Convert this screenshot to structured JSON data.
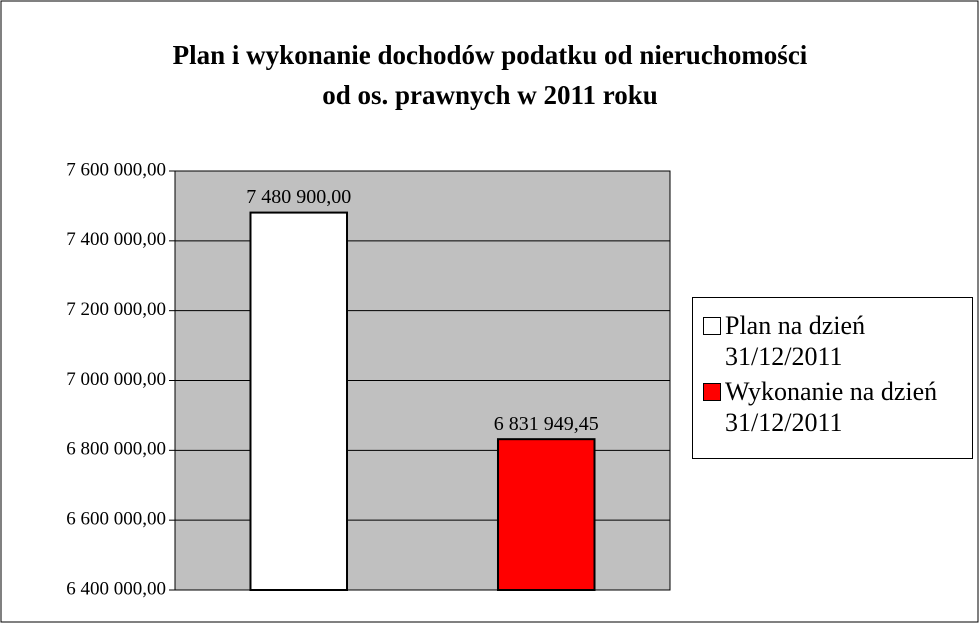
{
  "chart_data": {
    "type": "bar",
    "title": [
      "Plan i wykonanie dochodów podatku od nieruchomości",
      "od os. prawnych w 2011 roku"
    ],
    "series": [
      {
        "name": "Plan na dzień 31/12/2011",
        "color": "#ffffff",
        "values": [
          7480900
        ],
        "value_labels": [
          "7 480 900,00"
        ]
      },
      {
        "name": "Wykonanie na dzień 31/12/2011",
        "color": "#ff0000",
        "values": [
          6831949.45
        ],
        "value_labels": [
          "6 831 949,45"
        ]
      }
    ],
    "ylim": [
      6400000,
      7600000
    ],
    "yticks": [
      {
        "value": 6400000,
        "label": "6 400 000,00"
      },
      {
        "value": 6600000,
        "label": "6 600 000,00"
      },
      {
        "value": 6800000,
        "label": "6 800 000,00"
      },
      {
        "value": 7000000,
        "label": "7 000 000,00"
      },
      {
        "value": 7200000,
        "label": "7 200 000,00"
      },
      {
        "value": 7400000,
        "label": "7 400 000,00"
      },
      {
        "value": 7600000,
        "label": "7 600 000,00"
      }
    ],
    "grid": true,
    "plot_background": "#c0c0c0",
    "legend": "right"
  }
}
